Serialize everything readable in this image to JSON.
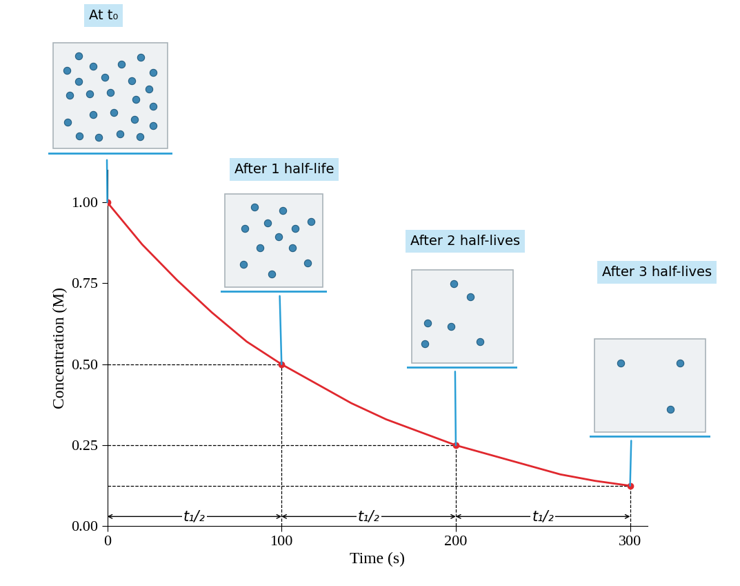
{
  "chart_data": {
    "type": "line",
    "x_label": "Time (s)",
    "y_label": "Concentration (M)",
    "x": [
      0,
      20,
      40,
      60,
      80,
      100,
      120,
      140,
      160,
      180,
      200,
      220,
      240,
      260,
      280,
      300
    ],
    "values": [
      1.0,
      0.87,
      0.76,
      0.66,
      0.57,
      0.5,
      0.44,
      0.38,
      0.33,
      0.29,
      0.25,
      0.22,
      0.19,
      0.16,
      0.14,
      0.125
    ],
    "color": "#e0282e",
    "line_style": "solid",
    "xlim": [
      0,
      310
    ],
    "ylim": [
      0,
      1.1
    ],
    "xticks": [
      0,
      100,
      200,
      300
    ],
    "yticks": [
      {
        "value": 0,
        "label": "0.00"
      },
      {
        "value": 0.25,
        "label": "0.25"
      },
      {
        "value": 0.5,
        "label": "0.50"
      },
      {
        "value": 0.75,
        "label": "0.75"
      },
      {
        "value": 1.0,
        "label": "1.00"
      }
    ],
    "grid": false,
    "half_life_label": "t₁/₂",
    "annotations": [
      {
        "label": "At t₀",
        "x": 0,
        "y": 1.0,
        "particles": 24
      },
      {
        "label": "After 1 half-life",
        "x": 100,
        "y": 0.5,
        "particles": 12
      },
      {
        "label": "After 2 half-lives",
        "x": 200,
        "y": 0.25,
        "particles": 6
      },
      {
        "label": "After 3 half-lives",
        "x": 300,
        "y": 0.125,
        "particles": 3
      }
    ]
  }
}
